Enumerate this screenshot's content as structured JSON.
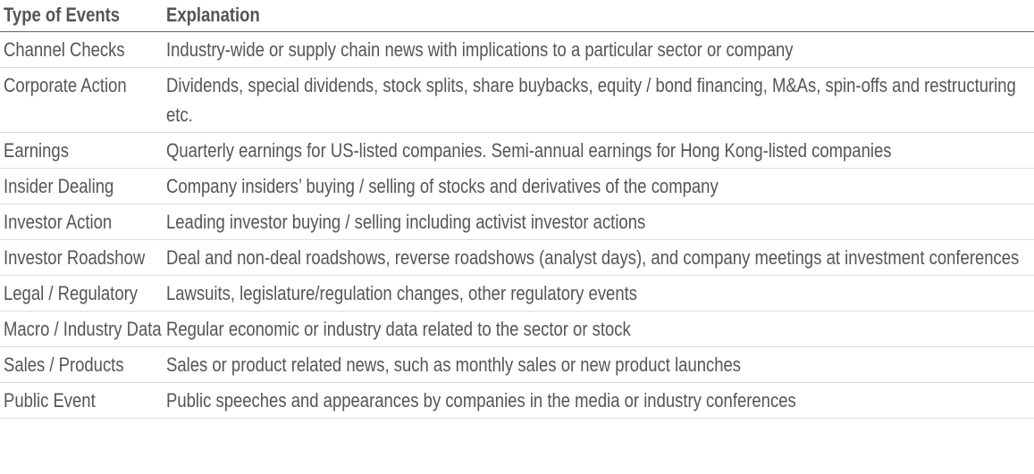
{
  "table": {
    "headers": [
      "Type of Events",
      "Explanation"
    ],
    "rows": [
      [
        "Channel Checks",
        "Industry-wide or supply chain news with implications to a particular sector or company"
      ],
      [
        "Corporate Action",
        "Dividends, special dividends, stock splits, share buybacks, equity / bond financing, M&As, spin-offs and restructuring etc."
      ],
      [
        "Earnings",
        "Quarterly earnings for US-listed companies. Semi-annual earnings for Hong Kong-listed companies"
      ],
      [
        "Insider Dealing",
        "Company insiders’ buying / selling of stocks and derivatives of the company"
      ],
      [
        "Investor Action",
        "Leading investor buying / selling including activist investor actions"
      ],
      [
        "Investor Roadshow",
        "Deal and non-deal roadshows, reverse roadshows (analyst days), and company meetings at investment conferences"
      ],
      [
        "Legal / Regulatory",
        "Lawsuits, legislature/regulation changes, other regulatory events"
      ],
      [
        "Macro / Industry Data",
        "Regular economic or industry data related to the sector or stock"
      ],
      [
        "Sales / Products",
        "Sales or product related news, such as monthly sales or new product launches"
      ],
      [
        "Public Event",
        "Public speeches and appearances by companies in the media or industry conferences"
      ]
    ]
  }
}
